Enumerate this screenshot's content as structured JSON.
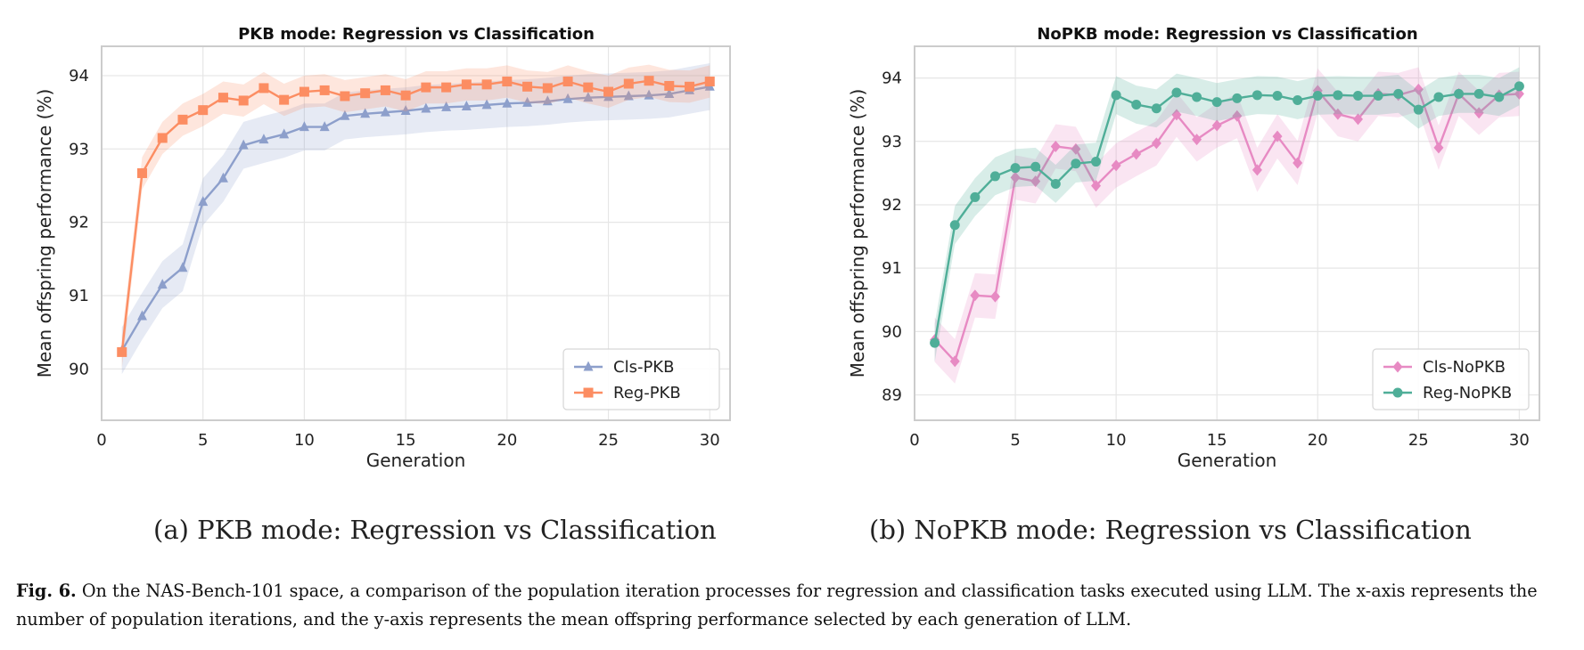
{
  "chart_data": [
    {
      "type": "line",
      "title": "PKB mode: Regression vs Classification",
      "xlabel": "Generation",
      "ylabel": "Mean offspring performance (%)",
      "xlim": [
        0,
        31
      ],
      "ylim": [
        89.3,
        94.4
      ],
      "xticks": [
        0,
        5,
        10,
        15,
        20,
        25,
        30
      ],
      "yticks": [
        90,
        91,
        92,
        93,
        94
      ],
      "grid": true,
      "legend_position": "lower-right",
      "x": [
        1,
        2,
        3,
        4,
        5,
        6,
        7,
        8,
        9,
        10,
        11,
        12,
        13,
        14,
        15,
        16,
        17,
        18,
        19,
        20,
        21,
        22,
        23,
        24,
        25,
        26,
        27,
        28,
        29,
        30
      ],
      "series": [
        {
          "name": "Cls-PKB",
          "color": "#8d9fcb",
          "marker": "triangle",
          "values": [
            90.25,
            90.72,
            91.15,
            91.38,
            92.28,
            92.6,
            93.05,
            93.13,
            93.2,
            93.3,
            93.3,
            93.45,
            93.48,
            93.5,
            93.52,
            93.55,
            93.57,
            93.58,
            93.6,
            93.62,
            93.63,
            93.65,
            93.68,
            93.7,
            93.71,
            93.72,
            93.73,
            93.75,
            93.8,
            93.85
          ],
          "band": 0.32
        },
        {
          "name": "Reg-PKB",
          "color": "#fc8d62",
          "marker": "square",
          "values": [
            90.23,
            92.67,
            93.15,
            93.4,
            93.53,
            93.7,
            93.66,
            93.83,
            93.67,
            93.78,
            93.8,
            93.72,
            93.76,
            93.8,
            93.73,
            93.84,
            93.84,
            93.88,
            93.88,
            93.92,
            93.85,
            93.83,
            93.92,
            93.84,
            93.78,
            93.89,
            93.93,
            93.86,
            93.85,
            93.92
          ],
          "band": 0.22
        }
      ]
    },
    {
      "type": "line",
      "title": "NoPKB mode: Regression vs Classification",
      "xlabel": "Generation",
      "ylabel": "Mean offspring performance (%)",
      "xlim": [
        0,
        31
      ],
      "ylim": [
        88.6,
        94.5
      ],
      "xticks": [
        0,
        5,
        10,
        15,
        20,
        25,
        30
      ],
      "yticks": [
        89,
        90,
        91,
        92,
        93,
        94
      ],
      "grid": true,
      "legend_position": "lower-right",
      "x": [
        1,
        2,
        3,
        4,
        5,
        6,
        7,
        8,
        9,
        10,
        11,
        12,
        13,
        14,
        15,
        16,
        17,
        18,
        19,
        20,
        21,
        22,
        23,
        24,
        25,
        26,
        27,
        28,
        29,
        30
      ],
      "series": [
        {
          "name": "Cls-NoPKB",
          "color": "#e78ac3",
          "marker": "diamond",
          "values": [
            89.87,
            89.53,
            90.57,
            90.55,
            92.43,
            92.37,
            92.92,
            92.88,
            92.3,
            92.62,
            92.8,
            92.97,
            93.42,
            93.03,
            93.25,
            93.4,
            92.55,
            93.08,
            92.66,
            93.8,
            93.43,
            93.35,
            93.75,
            93.73,
            93.82,
            92.9,
            93.75,
            93.45,
            93.73,
            93.75
          ],
          "band": 0.35
        },
        {
          "name": "Reg-NoPKB",
          "color": "#4fae98",
          "marker": "circle",
          "values": [
            89.82,
            91.68,
            92.12,
            92.45,
            92.58,
            92.6,
            92.33,
            92.65,
            92.68,
            93.73,
            93.58,
            93.52,
            93.77,
            93.7,
            93.62,
            93.68,
            93.73,
            93.72,
            93.65,
            93.72,
            93.73,
            93.72,
            93.72,
            93.75,
            93.5,
            93.7,
            93.75,
            93.75,
            93.7,
            93.87
          ],
          "band": 0.3
        }
      ]
    }
  ],
  "sub_captions": {
    "a": "(a) PKB mode: Regression vs Classification",
    "b": "(b) NoPKB mode: Regression vs Classification"
  },
  "figure_caption": {
    "label": "Fig. 6.",
    "text": "On the NAS-Bench-101 space, a comparison of the population iteration processes for regression and classification tasks executed using LLM. The x-axis represents the number of population iterations, and the y-axis represents the mean offspring performance selected by each generation of LLM."
  }
}
